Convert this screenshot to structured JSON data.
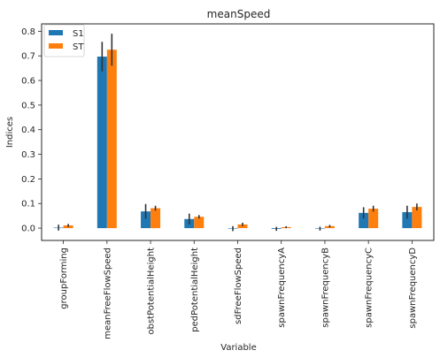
{
  "colors": {
    "S1": "#1f77b4",
    "ST": "#ff7f0e",
    "errorbar": "#333333",
    "frame": "#262626"
  },
  "chart_data": {
    "type": "bar",
    "title": "meanSpeed",
    "xlabel": "Variable",
    "ylabel": "Indices",
    "ylim": [
      -0.05,
      0.83
    ],
    "yticks": [
      0.0,
      0.1,
      0.2,
      0.3,
      0.4,
      0.5,
      0.6,
      0.7,
      0.8
    ],
    "ytick_labels": [
      "0.0",
      "0.1",
      "0.2",
      "0.3",
      "0.4",
      "0.5",
      "0.6",
      "0.7",
      "0.8"
    ],
    "grid": false,
    "legend_position": "top-left",
    "categories": [
      "groupForming",
      "meanFreeFlowSpeed",
      "obstPotentialHeight",
      "pedPotentialHeight",
      "sdFreeFlowSpeed",
      "spawnFrequencyA",
      "spawnFrequencyB",
      "spawnFrequencyC",
      "spawnFrequencyD"
    ],
    "series": [
      {
        "name": "S1",
        "values": [
          0.002,
          0.697,
          0.068,
          0.037,
          -0.002,
          -0.003,
          -0.002,
          0.062,
          0.065
        ],
        "errors": [
          0.012,
          0.06,
          0.03,
          0.022,
          0.01,
          0.008,
          0.008,
          0.023,
          0.026
        ]
      },
      {
        "name": "ST",
        "values": [
          0.011,
          0.725,
          0.081,
          0.046,
          0.015,
          0.004,
          0.008,
          0.079,
          0.086
        ],
        "errors": [
          0.006,
          0.065,
          0.01,
          0.007,
          0.007,
          0.004,
          0.005,
          0.012,
          0.014
        ]
      }
    ]
  }
}
